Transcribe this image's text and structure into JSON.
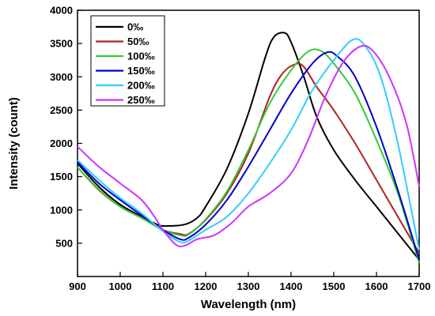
{
  "chart_data": {
    "type": "line",
    "title": "",
    "xlabel": "Wavelength (nm)",
    "ylabel": "Intensity (count)",
    "xlim": [
      900,
      1700
    ],
    "ylim": [
      0,
      4000
    ],
    "x_ticks": [
      900,
      1000,
      1100,
      1200,
      1300,
      1400,
      1500,
      1600,
      1700
    ],
    "y_ticks": [
      500,
      1000,
      1500,
      2000,
      2500,
      3000,
      3500,
      4000
    ],
    "grid": false,
    "legend_position": "top-left",
    "series": [
      {
        "name": "0‰",
        "color": "#000000",
        "points": [
          [
            900,
            1700
          ],
          [
            950,
            1350
          ],
          [
            1000,
            1080
          ],
          [
            1050,
            900
          ],
          [
            1080,
            800
          ],
          [
            1100,
            760
          ],
          [
            1150,
            780
          ],
          [
            1180,
            880
          ],
          [
            1200,
            1050
          ],
          [
            1250,
            1620
          ],
          [
            1300,
            2450
          ],
          [
            1340,
            3300
          ],
          [
            1360,
            3600
          ],
          [
            1385,
            3660
          ],
          [
            1400,
            3520
          ],
          [
            1430,
            3000
          ],
          [
            1460,
            2400
          ],
          [
            1500,
            1900
          ],
          [
            1550,
            1450
          ],
          [
            1600,
            1050
          ],
          [
            1650,
            650
          ],
          [
            1700,
            250
          ]
        ]
      },
      {
        "name": "50‰",
        "color": "#b22222",
        "points": [
          [
            900,
            1640
          ],
          [
            950,
            1300
          ],
          [
            1000,
            1050
          ],
          [
            1050,
            880
          ],
          [
            1100,
            700
          ],
          [
            1140,
            640
          ],
          [
            1160,
            640
          ],
          [
            1200,
            850
          ],
          [
            1250,
            1250
          ],
          [
            1300,
            1850
          ],
          [
            1350,
            2700
          ],
          [
            1380,
            3050
          ],
          [
            1410,
            3190
          ],
          [
            1430,
            3150
          ],
          [
            1460,
            2850
          ],
          [
            1500,
            2500
          ],
          [
            1550,
            2000
          ],
          [
            1600,
            1450
          ],
          [
            1650,
            900
          ],
          [
            1700,
            350
          ]
        ]
      },
      {
        "name": "100‰",
        "color": "#33cc33",
        "points": [
          [
            900,
            1640
          ],
          [
            950,
            1310
          ],
          [
            1000,
            1050
          ],
          [
            1050,
            880
          ],
          [
            1100,
            700
          ],
          [
            1140,
            620
          ],
          [
            1160,
            630
          ],
          [
            1200,
            860
          ],
          [
            1250,
            1280
          ],
          [
            1300,
            1900
          ],
          [
            1350,
            2600
          ],
          [
            1400,
            3100
          ],
          [
            1440,
            3380
          ],
          [
            1470,
            3390
          ],
          [
            1500,
            3200
          ],
          [
            1550,
            2750
          ],
          [
            1600,
            2050
          ],
          [
            1650,
            1250
          ],
          [
            1700,
            200
          ]
        ]
      },
      {
        "name": "150‰",
        "color": "#0000cc",
        "points": [
          [
            900,
            1720
          ],
          [
            950,
            1400
          ],
          [
            1000,
            1150
          ],
          [
            1050,
            920
          ],
          [
            1100,
            700
          ],
          [
            1140,
            560
          ],
          [
            1160,
            580
          ],
          [
            1200,
            780
          ],
          [
            1250,
            1150
          ],
          [
            1300,
            1650
          ],
          [
            1350,
            2200
          ],
          [
            1400,
            2750
          ],
          [
            1450,
            3200
          ],
          [
            1485,
            3370
          ],
          [
            1510,
            3300
          ],
          [
            1550,
            3000
          ],
          [
            1600,
            2250
          ],
          [
            1650,
            1300
          ],
          [
            1700,
            250
          ]
        ]
      },
      {
        "name": "200‰",
        "color": "#33ccff",
        "points": [
          [
            900,
            1750
          ],
          [
            950,
            1450
          ],
          [
            1000,
            1180
          ],
          [
            1050,
            950
          ],
          [
            1100,
            680
          ],
          [
            1140,
            520
          ],
          [
            1160,
            540
          ],
          [
            1200,
            700
          ],
          [
            1250,
            900
          ],
          [
            1300,
            1250
          ],
          [
            1350,
            1700
          ],
          [
            1400,
            2200
          ],
          [
            1450,
            2800
          ],
          [
            1500,
            3250
          ],
          [
            1545,
            3560
          ],
          [
            1575,
            3450
          ],
          [
            1610,
            3000
          ],
          [
            1650,
            2000
          ],
          [
            1700,
            400
          ]
        ]
      },
      {
        "name": "250‰",
        "color": "#cc33ff",
        "points": [
          [
            900,
            1950
          ],
          [
            950,
            1650
          ],
          [
            1000,
            1400
          ],
          [
            1050,
            1150
          ],
          [
            1080,
            900
          ],
          [
            1100,
            700
          ],
          [
            1130,
            480
          ],
          [
            1150,
            460
          ],
          [
            1180,
            560
          ],
          [
            1220,
            620
          ],
          [
            1260,
            800
          ],
          [
            1300,
            1050
          ],
          [
            1350,
            1250
          ],
          [
            1400,
            1550
          ],
          [
            1440,
            2050
          ],
          [
            1480,
            2700
          ],
          [
            1520,
            3200
          ],
          [
            1560,
            3450
          ],
          [
            1590,
            3400
          ],
          [
            1630,
            3000
          ],
          [
            1670,
            2300
          ],
          [
            1700,
            1350
          ]
        ]
      }
    ]
  }
}
